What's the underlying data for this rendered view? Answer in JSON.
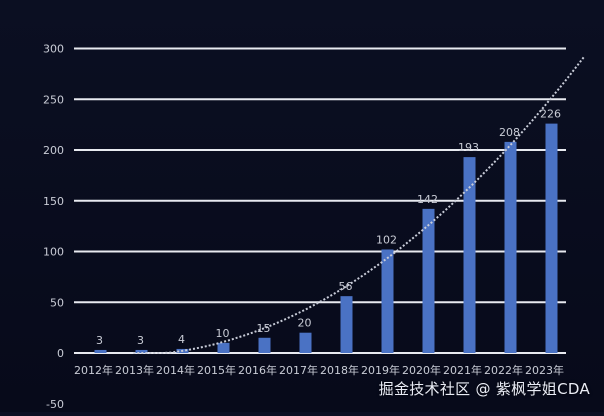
{
  "chart_data": {
    "type": "bar",
    "categories": [
      "2012年",
      "2013年",
      "2014年",
      "2015年",
      "2016年",
      "2017年",
      "2018年",
      "2019年",
      "2020年",
      "2021年",
      "2022年",
      "2023年"
    ],
    "values": [
      3,
      3,
      4,
      10,
      15,
      20,
      56,
      102,
      142,
      193,
      208,
      226
    ],
    "data_labels": [
      "3",
      "3",
      "4",
      "10",
      "15",
      "20",
      "56",
      "102",
      "142",
      "193",
      "208",
      "226"
    ],
    "yticks": [
      "-50",
      "0",
      "50",
      "100",
      "150",
      "200",
      "250",
      "300"
    ],
    "ylim": [
      -50,
      300
    ],
    "grid": true,
    "trendline": true,
    "colors": {
      "bar": "#4a72c4",
      "grid": "#e8eaf0",
      "text": "#c9ccd6",
      "trend": "#c8ccd8"
    }
  },
  "watermark": "掘金技术社区 @ 紫枫学姐CDA"
}
